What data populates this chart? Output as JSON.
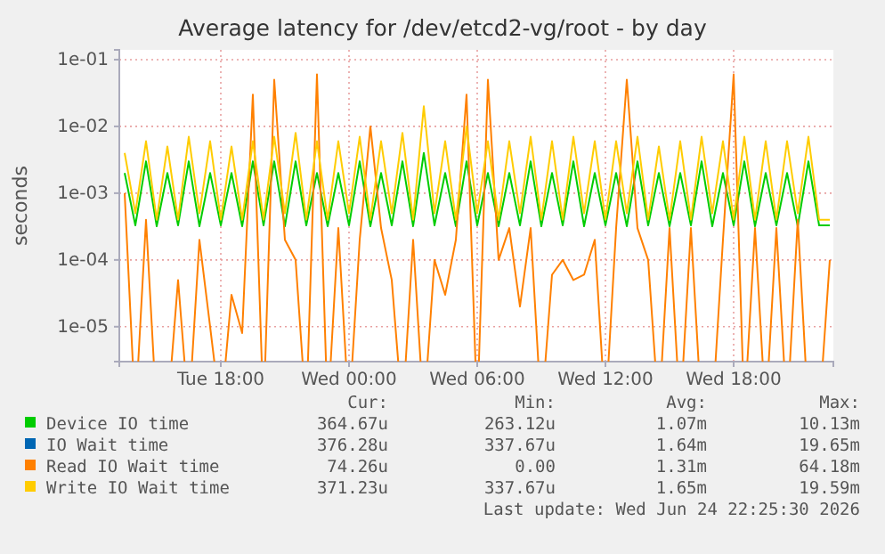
{
  "chart_data": {
    "type": "line",
    "title": "Average latency for /dev/etcd2-vg/root - by day",
    "ylabel": "seconds",
    "log": true,
    "grid": true,
    "legend": "bottom",
    "ylim": [
      3e-06,
      0.14
    ],
    "yticks": [
      {
        "value": 1e-05,
        "label": "1e-05"
      },
      {
        "value": 0.0001,
        "label": "1e-04"
      },
      {
        "value": 0.001,
        "label": "1e-03"
      },
      {
        "value": 0.01,
        "label": "1e-02"
      },
      {
        "value": 0.1,
        "label": "1e-01"
      }
    ],
    "xlim": [
      "2026-06-23T13:15",
      "2026-06-24T22:40"
    ],
    "xticks": [
      {
        "value": "2026-06-23T18:00",
        "label": "Tue 18:00"
      },
      {
        "value": "2026-06-24T00:00",
        "label": "Wed 00:00"
      },
      {
        "value": "2026-06-24T06:00",
        "label": "Wed 06:00"
      },
      {
        "value": "2026-06-24T12:00",
        "label": "Wed 12:00"
      },
      {
        "value": "2026-06-24T18:00",
        "label": "Wed 18:00"
      }
    ],
    "x": [
      "2026-06-23T13:30",
      "2026-06-23T14:00",
      "2026-06-23T14:30",
      "2026-06-23T15:00",
      "2026-06-23T15:30",
      "2026-06-23T16:00",
      "2026-06-23T16:30",
      "2026-06-23T17:00",
      "2026-06-23T17:30",
      "2026-06-23T18:00",
      "2026-06-23T18:30",
      "2026-06-23T19:00",
      "2026-06-23T19:30",
      "2026-06-23T20:00",
      "2026-06-23T20:30",
      "2026-06-23T21:00",
      "2026-06-23T21:30",
      "2026-06-23T22:00",
      "2026-06-23T22:30",
      "2026-06-23T23:00",
      "2026-06-23T23:30",
      "2026-06-24T00:00",
      "2026-06-24T00:30",
      "2026-06-24T01:00",
      "2026-06-24T01:30",
      "2026-06-24T02:00",
      "2026-06-24T02:30",
      "2026-06-24T03:00",
      "2026-06-24T03:30",
      "2026-06-24T04:00",
      "2026-06-24T04:30",
      "2026-06-24T05:00",
      "2026-06-24T05:30",
      "2026-06-24T06:00",
      "2026-06-24T06:30",
      "2026-06-24T07:00",
      "2026-06-24T07:30",
      "2026-06-24T08:00",
      "2026-06-24T08:30",
      "2026-06-24T09:00",
      "2026-06-24T09:30",
      "2026-06-24T10:00",
      "2026-06-24T10:30",
      "2026-06-24T11:00",
      "2026-06-24T11:30",
      "2026-06-24T12:00",
      "2026-06-24T12:30",
      "2026-06-24T13:00",
      "2026-06-24T13:30",
      "2026-06-24T14:00",
      "2026-06-24T14:30",
      "2026-06-24T15:00",
      "2026-06-24T15:30",
      "2026-06-24T16:00",
      "2026-06-24T16:30",
      "2026-06-24T17:00",
      "2026-06-24T17:30",
      "2026-06-24T18:00",
      "2026-06-24T18:30",
      "2026-06-24T19:00",
      "2026-06-24T19:30",
      "2026-06-24T20:00",
      "2026-06-24T20:30",
      "2026-06-24T21:00",
      "2026-06-24T21:30",
      "2026-06-24T22:00",
      "2026-06-24T22:30"
    ],
    "series": [
      {
        "name": "Device IO time",
        "color": "#00cc00",
        "values": [
          0.002,
          0.00033,
          0.003,
          0.00032,
          0.002,
          0.00033,
          0.003,
          0.00032,
          0.002,
          0.00033,
          0.002,
          0.00032,
          0.003,
          0.00033,
          0.003,
          0.00032,
          0.003,
          0.00033,
          0.002,
          0.00032,
          0.002,
          0.00033,
          0.003,
          0.00032,
          0.002,
          0.00033,
          0.003,
          0.00032,
          0.004,
          0.00033,
          0.002,
          0.00032,
          0.003,
          0.00033,
          0.002,
          0.00032,
          0.002,
          0.00033,
          0.003,
          0.00032,
          0.002,
          0.00033,
          0.003,
          0.00032,
          0.002,
          0.00033,
          0.002,
          0.00032,
          0.003,
          0.00033,
          0.002,
          0.00032,
          0.002,
          0.00033,
          0.003,
          0.00032,
          0.002,
          0.00033,
          0.003,
          0.00032,
          0.002,
          0.00033,
          0.002,
          0.00032,
          0.003,
          0.00033,
          0.00033
        ]
      },
      {
        "name": "IO Wait time",
        "color": "#0066b3",
        "values": [
          null,
          null,
          null,
          null,
          null,
          null,
          null,
          null,
          null,
          null,
          null,
          null,
          null,
          null,
          null,
          null,
          null,
          null,
          null,
          null,
          null,
          null,
          null,
          null,
          null,
          null,
          null,
          null,
          null,
          null,
          null,
          null,
          null,
          null,
          null,
          null,
          null,
          null,
          null,
          null,
          null,
          null,
          null,
          null,
          null,
          null,
          null,
          null,
          null,
          null,
          null,
          null,
          null,
          null,
          null,
          null,
          null,
          null,
          null,
          null,
          null,
          null,
          null,
          null,
          null,
          null,
          null
        ]
      },
      {
        "name": "Read IO Wait time",
        "color": "#ff8000",
        "values": [
          0.001,
          null,
          0.0004,
          null,
          null,
          5e-05,
          null,
          0.0002,
          1e-05,
          null,
          3e-05,
          8e-06,
          0.03,
          null,
          0.05,
          0.0002,
          0.0001,
          null,
          0.06,
          null,
          0.0003,
          null,
          0.0002,
          0.01,
          0.0003,
          5e-05,
          null,
          0.0002,
          null,
          0.0001,
          3e-05,
          0.0002,
          0.03,
          null,
          0.05,
          0.0001,
          0.0003,
          2e-05,
          0.0003,
          null,
          6e-05,
          0.0001,
          5e-05,
          6e-05,
          0.0002,
          null,
          0.0003,
          0.05,
          0.0003,
          0.0001,
          null,
          0.0003,
          null,
          0.0003,
          null,
          null,
          0.0002,
          0.06,
          null,
          0.0003,
          null,
          0.0003,
          null,
          0.0004,
          null,
          null,
          0.0001
        ]
      },
      {
        "name": "Write IO Wait time",
        "color": "#ffcc00",
        "values": [
          0.004,
          0.0005,
          0.006,
          0.0004,
          0.005,
          0.0004,
          0.007,
          0.0005,
          0.006,
          0.0004,
          0.005,
          0.0004,
          0.006,
          0.0004,
          0.007,
          0.0005,
          0.008,
          0.0004,
          0.006,
          0.0004,
          0.006,
          0.0005,
          0.007,
          0.0004,
          0.006,
          0.0005,
          0.008,
          0.0004,
          0.02,
          0.0005,
          0.006,
          0.0004,
          0.01,
          0.0005,
          0.006,
          0.0004,
          0.006,
          0.0005,
          0.007,
          0.0004,
          0.006,
          0.0004,
          0.007,
          0.0005,
          0.006,
          0.0004,
          0.006,
          0.0005,
          0.007,
          0.0004,
          0.005,
          0.0004,
          0.006,
          0.0004,
          0.007,
          0.0005,
          0.006,
          0.0004,
          0.007,
          0.0004,
          0.006,
          0.0004,
          0.006,
          0.0005,
          0.007,
          0.0004,
          0.0004
        ]
      }
    ],
    "annotations": [
      "Cur:",
      "Min:",
      "Avg:",
      "Max:",
      "364.67u",
      "263.12u",
      "1.07m",
      "10.13m",
      "376.28u",
      "337.67u",
      "1.64m",
      "19.65m",
      "74.26u",
      "0.00",
      "1.31m",
      "64.18m",
      "371.23u",
      "337.67u",
      "1.65m",
      "19.59m",
      "Last update: Wed Jun 24 22:25:30 2026"
    ]
  }
}
